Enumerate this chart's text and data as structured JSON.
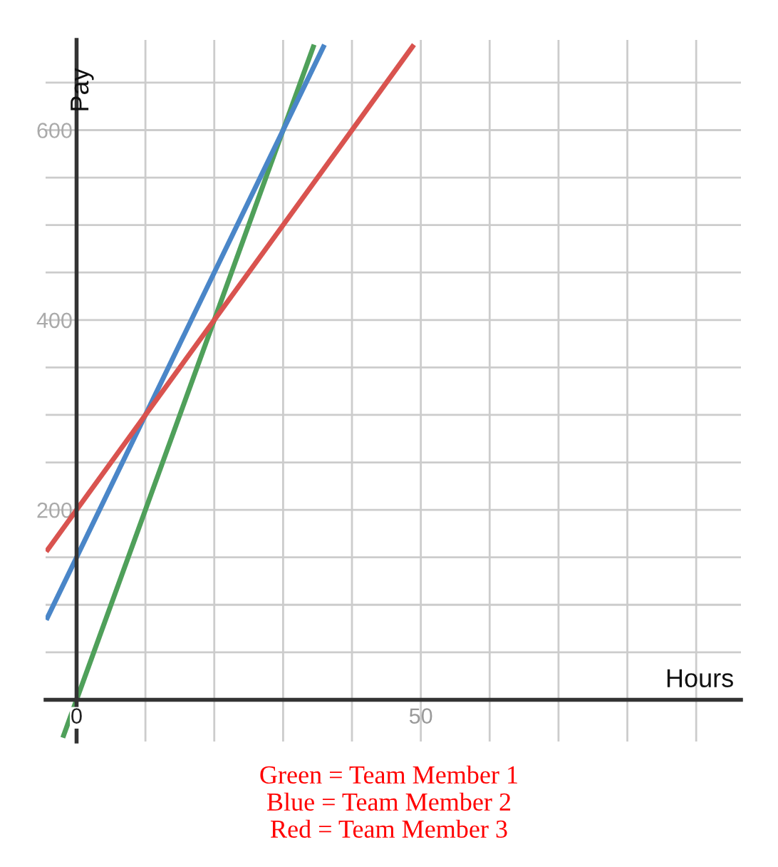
{
  "chart_data": {
    "type": "line",
    "xlabel": "Hours",
    "ylabel": "Pay",
    "xlim": [
      -4.5,
      96.5
    ],
    "ylim": [
      -44,
      695
    ],
    "xticks": [
      {
        "value": 0,
        "label": "0"
      },
      {
        "value": 10,
        "label": null
      },
      {
        "value": 20,
        "label": null
      },
      {
        "value": 30,
        "label": null
      },
      {
        "value": 40,
        "label": null
      },
      {
        "value": 50,
        "label": "50"
      },
      {
        "value": 60,
        "label": null
      },
      {
        "value": 70,
        "label": null
      },
      {
        "value": 80,
        "label": null
      },
      {
        "value": 90,
        "label": null
      }
    ],
    "yticks": [
      {
        "value": 50,
        "label": null
      },
      {
        "value": 100,
        "label": null
      },
      {
        "value": 150,
        "label": null
      },
      200,
      {
        "value": 250,
        "label": null
      },
      {
        "value": 300,
        "label": null
      },
      {
        "value": 350,
        "label": null
      },
      400,
      {
        "value": 450,
        "label": null
      },
      {
        "value": 500,
        "label": null
      },
      {
        "value": 550,
        "label": null
      },
      600,
      {
        "value": 650,
        "label": null
      }
    ],
    "grid": true,
    "marker": "none",
    "line_style": "solid",
    "series": [
      {
        "color": "#4fa05a",
        "x": [
          -2,
          34.5
        ],
        "values": [
          -40,
          690
        ]
      },
      {
        "color": "#4a86c8",
        "x": [
          -4.4,
          36
        ],
        "values": [
          84,
          690
        ]
      },
      {
        "color": "#d9534f",
        "x": [
          -4.4,
          49
        ],
        "values": [
          156,
          690
        ]
      }
    ],
    "annotations": [
      "Green = Team Member 1",
      "Blue = Team Member 2",
      "Red = Team Member 3"
    ]
  }
}
